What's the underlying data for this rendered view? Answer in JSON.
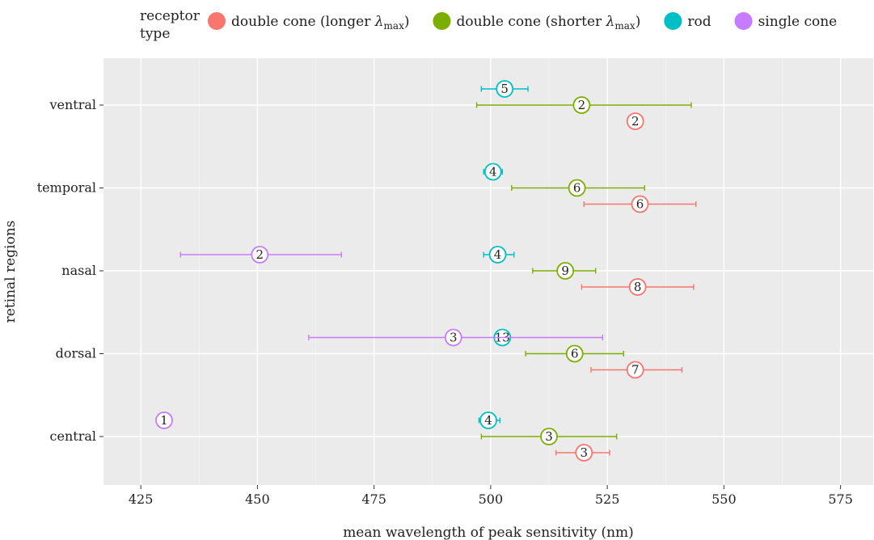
{
  "chart_data": {
    "type": "scatter",
    "xlabel": "mean wavelength of peak sensitivity (nm)",
    "ylabel": "retinal regions",
    "xlim": [
      417,
      582
    ],
    "x_ticks": [
      "425",
      "450",
      "475",
      "500",
      "525",
      "550",
      "575"
    ],
    "categories": [
      "ventral",
      "temporal",
      "nasal",
      "dorsal",
      "central"
    ],
    "grid": true,
    "legend": {
      "title_line1": "receptor",
      "title_line2": "type",
      "position": "top"
    },
    "series": [
      {
        "key": "dcl",
        "name_parts": [
          "double cone (longer ",
          "λ",
          "max",
          ")"
        ],
        "color": "#f8766d",
        "points": [
          {
            "category": "ventral",
            "mean": 531,
            "low": null,
            "high": null,
            "n": "2"
          },
          {
            "category": "temporal",
            "mean": 532,
            "low": 520,
            "high": 544,
            "n": "6"
          },
          {
            "category": "nasal",
            "mean": 531.5,
            "low": 519.5,
            "high": 543.5,
            "n": "8"
          },
          {
            "category": "dorsal",
            "mean": 531,
            "low": 521.5,
            "high": 541,
            "n": "7"
          },
          {
            "category": "central",
            "mean": 520,
            "low": 514,
            "high": 525.5,
            "n": "3"
          }
        ]
      },
      {
        "key": "dcs",
        "name_parts": [
          "double cone (shorter ",
          "λ",
          "max",
          ")"
        ],
        "color": "#7cae00",
        "points": [
          {
            "category": "ventral",
            "mean": 519.5,
            "low": 497,
            "high": 543,
            "n": "2"
          },
          {
            "category": "temporal",
            "mean": 518.5,
            "low": 504.5,
            "high": 533,
            "n": "6"
          },
          {
            "category": "nasal",
            "mean": 516,
            "low": 509,
            "high": 522.5,
            "n": "9"
          },
          {
            "category": "dorsal",
            "mean": 518,
            "low": 507.5,
            "high": 528.5,
            "n": "6"
          },
          {
            "category": "central",
            "mean": 512.5,
            "low": 498,
            "high": 527,
            "n": "3"
          }
        ]
      },
      {
        "key": "rod",
        "name_parts": [
          "rod"
        ],
        "color": "#00bfc4",
        "points": [
          {
            "category": "ventral",
            "mean": 503,
            "low": 498,
            "high": 508,
            "n": "5"
          },
          {
            "category": "temporal",
            "mean": 500.5,
            "low": 498.5,
            "high": 502.5,
            "n": "4"
          },
          {
            "category": "nasal",
            "mean": 501.5,
            "low": 498.5,
            "high": 505,
            "n": "4"
          },
          {
            "category": "dorsal",
            "mean": 502.5,
            "low": 501.5,
            "high": 503.5,
            "n": "13"
          },
          {
            "category": "central",
            "mean": 499.5,
            "low": 497.5,
            "high": 502,
            "n": "4"
          }
        ]
      },
      {
        "key": "single",
        "name_parts": [
          "single cone"
        ],
        "color": "#c77cff",
        "points": [
          {
            "category": "nasal",
            "mean": 450.5,
            "low": 433.5,
            "high": 468,
            "n": "2"
          },
          {
            "category": "dorsal",
            "mean": 492,
            "low": 461,
            "high": 524,
            "n": "3"
          },
          {
            "category": "central",
            "mean": 430,
            "low": null,
            "high": null,
            "n": "1"
          }
        ]
      }
    ]
  }
}
